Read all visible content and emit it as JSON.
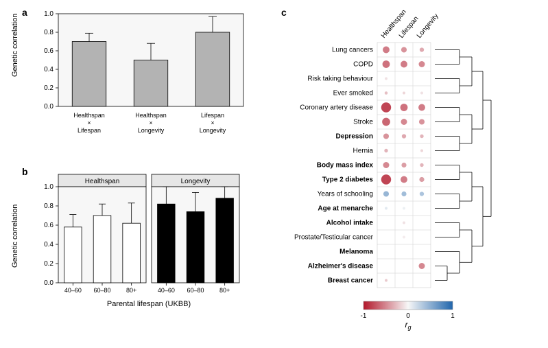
{
  "panelA": {
    "label": "a",
    "ylabel": "Genetic correlation",
    "ylim": [
      0,
      1.0
    ],
    "ytick_step": 0.2,
    "bar_color": "#b3b3b3",
    "bar_border": "#000000",
    "error_color": "#000000",
    "background_color": "#f7f7f7",
    "categories": [
      {
        "line1": "Healthspan",
        "line2": "×",
        "line3": "Lifespan"
      },
      {
        "line1": "Healthspan",
        "line2": "×",
        "line3": "Longevity"
      },
      {
        "line1": "Lifespan",
        "line2": "×",
        "line3": "Longevity"
      }
    ],
    "values": [
      0.7,
      0.5,
      0.8
    ],
    "errors": [
      0.09,
      0.18,
      0.17
    ]
  },
  "panelB": {
    "label": "b",
    "ylabel": "Genetic correlation",
    "xlabel": "Parental lifespan (UKBB)",
    "ylim": [
      0,
      1.0
    ],
    "ytick_step": 0.2,
    "facets": [
      {
        "title": "Healthspan",
        "bar_color": "#ffffff",
        "bar_border": "#000000",
        "categories": [
          "40–60",
          "60–80",
          "80+"
        ],
        "values": [
          0.58,
          0.7,
          0.62
        ],
        "errors": [
          0.13,
          0.12,
          0.21
        ]
      },
      {
        "title": "Longevity",
        "bar_color": "#000000",
        "bar_border": "#000000",
        "categories": [
          "40–60",
          "60–80",
          "80+"
        ],
        "values": [
          0.82,
          0.74,
          0.88
        ],
        "errors": [
          0.22,
          0.2,
          0.3
        ]
      }
    ],
    "strip_background": "#e6e6e6",
    "background_color": "#f7f7f7"
  },
  "panelC": {
    "label": "c",
    "columns": [
      "Healthspan",
      "Lifespan",
      "Longevity"
    ],
    "rows": [
      {
        "label": "Lung cancers",
        "bold": false,
        "values": [
          -0.55,
          -0.45,
          -0.35
        ]
      },
      {
        "label": "COPD",
        "bold": false,
        "values": [
          -0.6,
          -0.55,
          -0.5
        ]
      },
      {
        "label": "Risk taking behaviour",
        "bold": false,
        "values": [
          -0.1,
          null,
          null
        ]
      },
      {
        "label": "Ever smoked",
        "bold": false,
        "values": [
          -0.25,
          -0.15,
          -0.1
        ]
      },
      {
        "label": "Coronary artery disease",
        "bold": false,
        "values": [
          -0.8,
          -0.6,
          -0.55
        ]
      },
      {
        "label": "Stroke",
        "bold": false,
        "values": [
          -0.65,
          -0.5,
          -0.45
        ]
      },
      {
        "label": "Depression",
        "bold": true,
        "values": [
          -0.45,
          -0.35,
          -0.3
        ]
      },
      {
        "label": "Hernia",
        "bold": false,
        "values": [
          -0.3,
          null,
          -0.15
        ]
      },
      {
        "label": "Body mass index",
        "bold": true,
        "values": [
          -0.5,
          -0.4,
          -0.3
        ]
      },
      {
        "label": "Type 2 diabetes",
        "bold": true,
        "values": [
          -0.8,
          -0.55,
          -0.4
        ]
      },
      {
        "label": "Years of schooling",
        "bold": false,
        "values": [
          0.45,
          0.4,
          0.35
        ]
      },
      {
        "label": "Age at menarche",
        "bold": true,
        "values": [
          0.1,
          0.05,
          null
        ]
      },
      {
        "label": "Alcohol intake",
        "bold": true,
        "values": [
          null,
          -0.1,
          null
        ]
      },
      {
        "label": "Prostate/Testicular cancer",
        "bold": false,
        "values": [
          null,
          -0.05,
          null
        ]
      },
      {
        "label": "Melanoma",
        "bold": true,
        "values": [
          null,
          null,
          null
        ]
      },
      {
        "label": "Alzheimer's disease",
        "bold": true,
        "values": [
          null,
          null,
          -0.5
        ]
      },
      {
        "label": "Breast cancer",
        "bold": true,
        "values": [
          -0.2,
          null,
          null
        ]
      }
    ],
    "color_scale": {
      "min": -1,
      "max": 1,
      "min_color": "#b2182b",
      "mid_color": "#f7f7f7",
      "max_color": "#2166ac"
    },
    "legend_label": "rg",
    "max_radius": 9
  }
}
